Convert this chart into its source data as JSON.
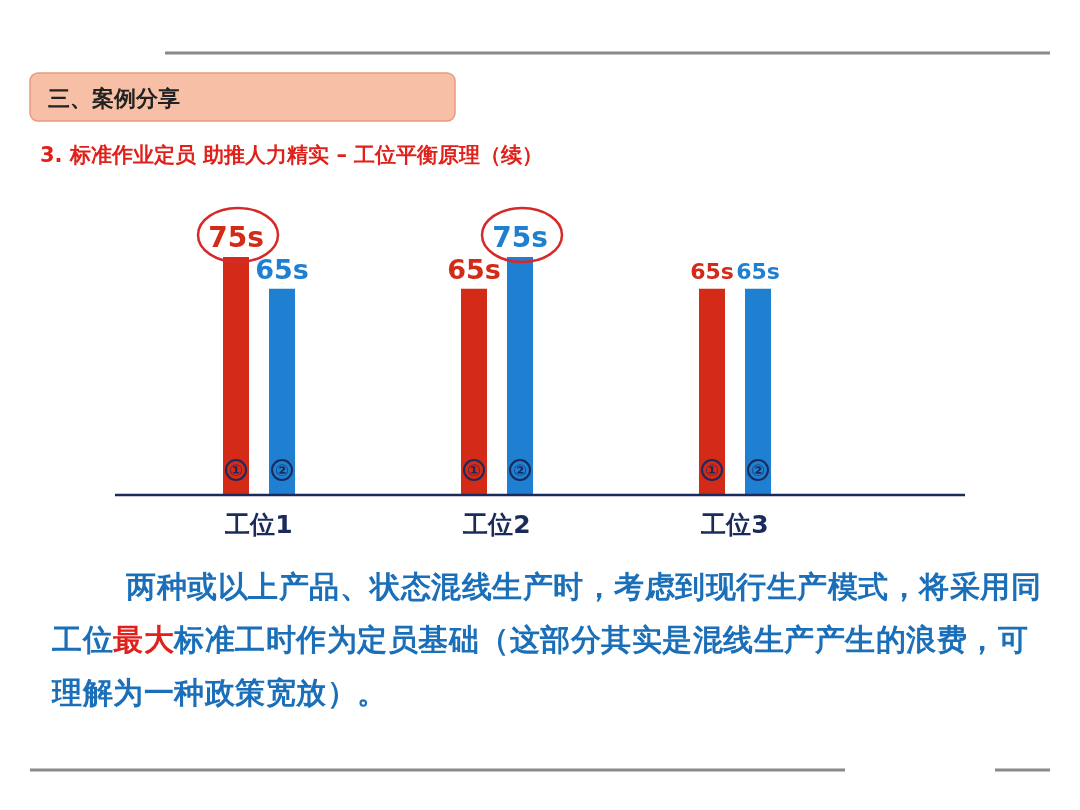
{
  "chart_data": {
    "type": "bar",
    "title": "三、案例分享",
    "subtitle": "3. 标准作业定员 助推人力精实 – 工位平衡原理（续）",
    "categories": [
      "工位1",
      "工位2",
      "工位3"
    ],
    "series": [
      {
        "name": "①",
        "color": "#d42a18",
        "values": [
          75,
          65,
          65
        ],
        "value_labels": [
          "75s",
          "65s",
          "65s"
        ]
      },
      {
        "name": "②",
        "color": "#1f7fd0",
        "values": [
          65,
          75,
          65
        ],
        "value_labels": [
          "65s",
          "75s",
          "65s"
        ]
      }
    ],
    "annotations": [
      "两种或以上产品、状态混线生产时，考虑到现行生产模式，将采用同工位",
      "最大",
      "标准工时作为定员基础（这部分其实是混线生产产生的浪费，可理解为一种政策宽放）。"
    ]
  }
}
